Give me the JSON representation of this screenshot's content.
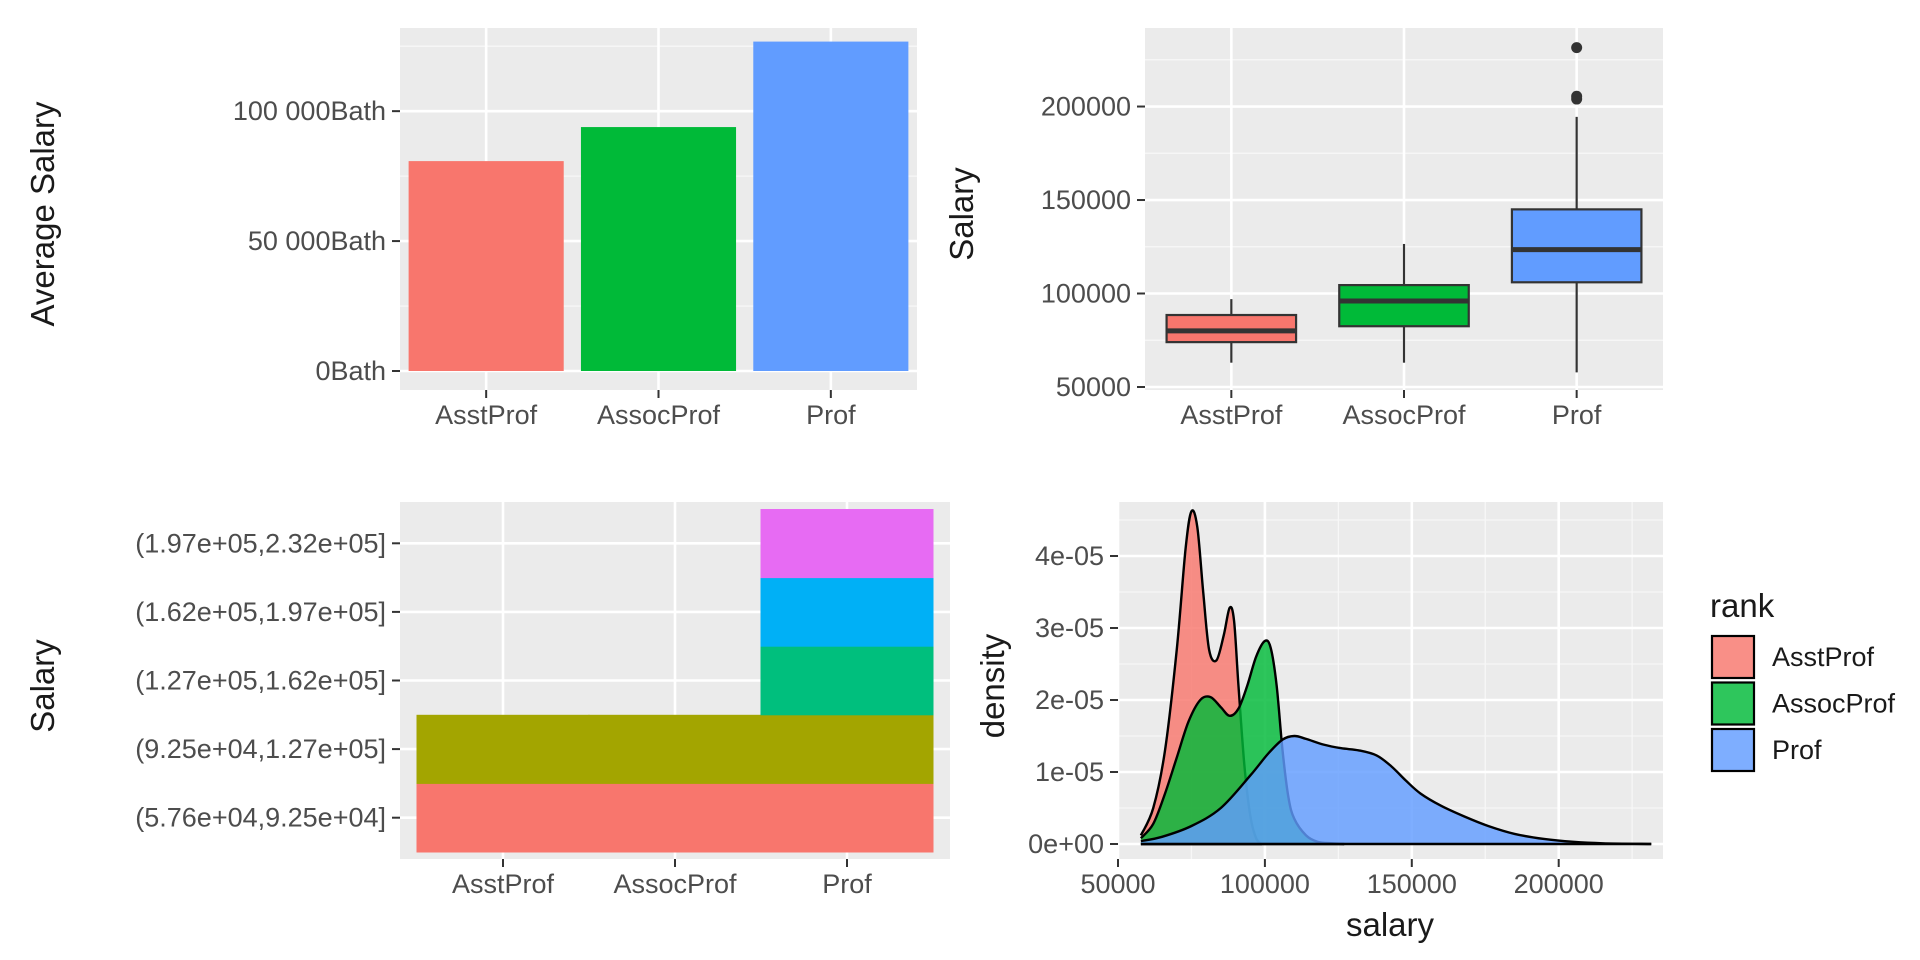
{
  "chart_data": [
    {
      "type": "bar",
      "panel": "top-left",
      "categories": [
        "AsstProf",
        "AssocProf",
        "Prof"
      ],
      "values": [
        80776,
        93876,
        126772
      ],
      "ylabel": "Average Salary",
      "xlabel": "",
      "ylim": [
        0,
        132000
      ],
      "yticks": [
        0,
        50000,
        100000
      ],
      "ytick_labels": [
        "0Bath",
        "50 000Bath",
        "100 000Bath"
      ],
      "grid": true
    },
    {
      "type": "boxplot",
      "panel": "top-right",
      "categories": [
        "AsstProf",
        "AssocProf",
        "Prof"
      ],
      "boxes": [
        {
          "whisker_low": 63000,
          "q1": 74000,
          "median": 80000,
          "q3": 88500,
          "whisker_high": 97000,
          "outliers": []
        },
        {
          "whisker_low": 63000,
          "q1": 82500,
          "median": 96000,
          "q3": 104500,
          "whisker_high": 126500,
          "outliers": []
        },
        {
          "whisker_low": 57800,
          "q1": 106000,
          "median": 123500,
          "q3": 145000,
          "whisker_high": 194500,
          "outliers": [
            204000,
            205500,
            231500
          ]
        }
      ],
      "ylabel": "Salary",
      "xlabel": "",
      "ylim": [
        50000,
        242000
      ],
      "yticks": [
        50000,
        100000,
        150000,
        200000
      ],
      "ytick_labels": [
        "50000",
        "100000",
        "150000",
        "200000"
      ],
      "grid": true
    },
    {
      "type": "heatmap",
      "panel": "bottom-left",
      "categories": [
        "AsstProf",
        "AssocProf",
        "Prof"
      ],
      "bins": [
        "(5.76e+04,9.25e+04]",
        "(9.25e+04,1.27e+05]",
        "(1.27e+05,1.62e+05]",
        "(1.62e+05,1.97e+05]",
        "(1.97e+05,2.32e+05]"
      ],
      "bin_colors": [
        "#F8766D",
        "#A3A500",
        "#00BF7D",
        "#00B0F6",
        "#E76BF3"
      ],
      "cells": [
        {
          "category": "AsstProf",
          "bin": "(5.76e+04,9.25e+04]"
        },
        {
          "category": "AsstProf",
          "bin": "(9.25e+04,1.27e+05]"
        },
        {
          "category": "AssocProf",
          "bin": "(5.76e+04,9.25e+04]"
        },
        {
          "category": "AssocProf",
          "bin": "(9.25e+04,1.27e+05]"
        },
        {
          "category": "Prof",
          "bin": "(5.76e+04,9.25e+04]"
        },
        {
          "category": "Prof",
          "bin": "(9.25e+04,1.27e+05]"
        },
        {
          "category": "Prof",
          "bin": "(1.27e+05,1.62e+05]"
        },
        {
          "category": "Prof",
          "bin": "(1.62e+05,1.97e+05]"
        },
        {
          "category": "Prof",
          "bin": "(1.97e+05,2.32e+05]"
        }
      ],
      "ylabel": "Salary",
      "xlabel": "",
      "grid": true
    },
    {
      "type": "area",
      "panel": "bottom-right",
      "x_range": [
        57800,
        231545
      ],
      "xlim": [
        50000,
        235500
      ],
      "ylim": [
        0,
        4.75e-05
      ],
      "xticks": [
        50000,
        100000,
        150000,
        200000
      ],
      "xtick_labels": [
        "50000",
        "100000",
        "150000",
        "200000"
      ],
      "yticks": [
        0,
        1e-05,
        2e-05,
        3e-05,
        4e-05
      ],
      "ytick_labels": [
        "0e+00",
        "1e-05",
        "2e-05",
        "3e-05",
        "4e-05"
      ],
      "xlabel": "salary",
      "ylabel": "density",
      "legend_title": "rank",
      "legend_position": "right",
      "grid": true,
      "series": [
        {
          "name": "AsstProf",
          "color": "#F8766D",
          "points": [
            [
              57800,
              1.2e-06
            ],
            [
              62000,
              5e-06
            ],
            [
              66000,
              1.3e-05
            ],
            [
              70000,
              2.7e-05
            ],
            [
              73000,
              4.1e-05
            ],
            [
              75000,
              4.62e-05
            ],
            [
              77000,
              4.4e-05
            ],
            [
              79000,
              3.5e-05
            ],
            [
              81000,
              2.7e-05
            ],
            [
              83500,
              2.55e-05
            ],
            [
              86000,
              2.9e-05
            ],
            [
              88000,
              3.28e-05
            ],
            [
              89500,
              3.1e-05
            ],
            [
              91000,
              2.2e-05
            ],
            [
              93000,
              1.1e-05
            ],
            [
              95000,
              4e-06
            ],
            [
              97000,
              8e-07
            ],
            [
              99000,
              0
            ]
          ]
        },
        {
          "name": "AssocProf",
          "color": "#00BA38",
          "points": [
            [
              57800,
              8e-07
            ],
            [
              62000,
              2.8e-06
            ],
            [
              66000,
              7e-06
            ],
            [
              70000,
              1.2e-05
            ],
            [
              74000,
              1.7e-05
            ],
            [
              78000,
              2e-05
            ],
            [
              81500,
              2.04e-05
            ],
            [
              85000,
              1.9e-05
            ],
            [
              88000,
              1.78e-05
            ],
            [
              91000,
              1.88e-05
            ],
            [
              94000,
              2.2e-05
            ],
            [
              97000,
              2.6e-05
            ],
            [
              100000,
              2.82e-05
            ],
            [
              102000,
              2.72e-05
            ],
            [
              104000,
              2.2e-05
            ],
            [
              106000,
              1.3e-05
            ],
            [
              108000,
              6.5e-06
            ],
            [
              110000,
              3.5e-06
            ],
            [
              114000,
              1.2e-06
            ],
            [
              118000,
              3e-07
            ],
            [
              123000,
              1e-07
            ],
            [
              127000,
              0
            ]
          ]
        },
        {
          "name": "Prof",
          "color": "#619CFF",
          "points": [
            [
              57800,
              4e-07
            ],
            [
              65000,
              1e-06
            ],
            [
              75000,
              2.5e-06
            ],
            [
              85000,
              5e-06
            ],
            [
              95000,
              9.5e-06
            ],
            [
              101000,
              1.25e-05
            ],
            [
              106000,
              1.45e-05
            ],
            [
              110000,
              1.5e-05
            ],
            [
              114000,
              1.46e-05
            ],
            [
              120000,
              1.38e-05
            ],
            [
              126000,
              1.33e-05
            ],
            [
              132000,
              1.3e-05
            ],
            [
              138000,
              1.23e-05
            ],
            [
              143000,
              1.08e-05
            ],
            [
              148000,
              8.8e-06
            ],
            [
              153000,
              7e-06
            ],
            [
              160000,
              5.3e-06
            ],
            [
              168000,
              3.8e-06
            ],
            [
              176000,
              2.5e-06
            ],
            [
              185000,
              1.4e-06
            ],
            [
              195000,
              7e-07
            ],
            [
              205000,
              3e-07
            ],
            [
              215000,
              1e-07
            ],
            [
              231500,
              0
            ]
          ]
        }
      ]
    }
  ]
}
